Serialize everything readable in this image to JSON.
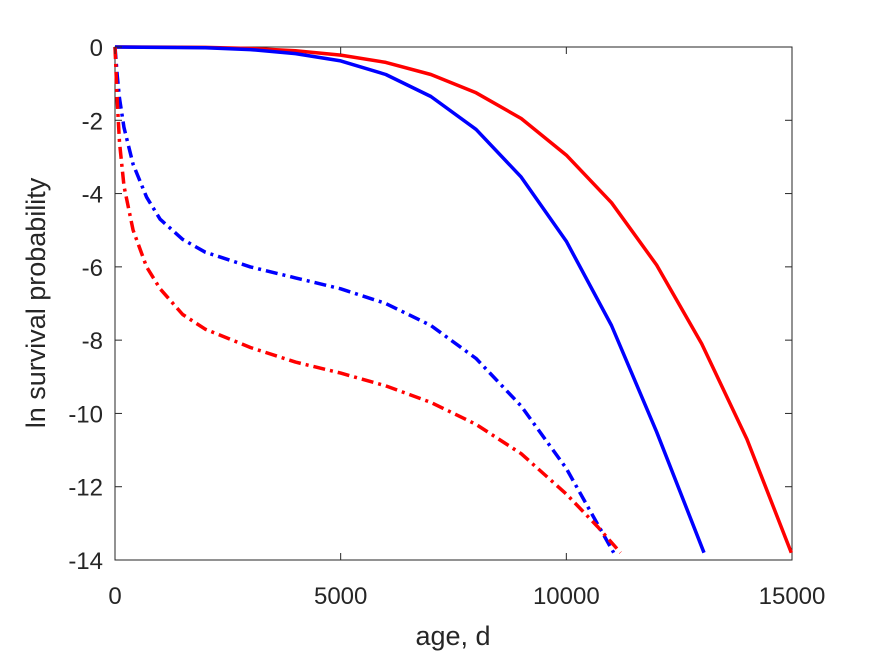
{
  "chart_data": {
    "type": "line",
    "title": "",
    "xlabel": "age, d",
    "ylabel": "ln survival probability",
    "xlim": [
      0,
      15000
    ],
    "ylim": [
      -14,
      0
    ],
    "xticks": [
      0,
      5000,
      10000,
      15000
    ],
    "yticks": [
      0,
      -2,
      -4,
      -6,
      -8,
      -10,
      -12,
      -14
    ],
    "xtick_labels": [
      "0",
      "5000",
      "10000",
      "15000"
    ],
    "ytick_labels": [
      "0",
      "-2",
      "-4",
      "-6",
      "-8",
      "-10",
      "-12",
      "-14"
    ],
    "grid": false,
    "legend": "none",
    "series": [
      {
        "color": "#ff0000",
        "style": "solid",
        "points": [
          [
            0,
            0
          ],
          [
            2000,
            -0.01
          ],
          [
            3000,
            -0.04
          ],
          [
            4000,
            -0.1
          ],
          [
            5000,
            -0.22
          ],
          [
            6000,
            -0.42
          ],
          [
            7000,
            -0.75
          ],
          [
            8000,
            -1.25
          ],
          [
            9000,
            -1.95
          ],
          [
            10000,
            -2.95
          ],
          [
            11000,
            -4.25
          ],
          [
            12000,
            -5.95
          ],
          [
            13000,
            -8.1
          ],
          [
            14000,
            -10.7
          ],
          [
            14985,
            -13.8
          ]
        ]
      },
      {
        "color": "#0000ff",
        "style": "solid",
        "points": [
          [
            0,
            0
          ],
          [
            2000,
            -0.02
          ],
          [
            3000,
            -0.07
          ],
          [
            4000,
            -0.18
          ],
          [
            5000,
            -0.38
          ],
          [
            6000,
            -0.75
          ],
          [
            7000,
            -1.35
          ],
          [
            8000,
            -2.25
          ],
          [
            9000,
            -3.55
          ],
          [
            10000,
            -5.3
          ],
          [
            11000,
            -7.6
          ],
          [
            12000,
            -10.5
          ],
          [
            13050,
            -13.8
          ]
        ]
      },
      {
        "color": "#0000ff",
        "style": "dashdot",
        "points": [
          [
            0,
            0
          ],
          [
            50,
            -0.8
          ],
          [
            100,
            -1.4
          ],
          [
            200,
            -2.2
          ],
          [
            400,
            -3.2
          ],
          [
            700,
            -4.1
          ],
          [
            1000,
            -4.7
          ],
          [
            1500,
            -5.25
          ],
          [
            2000,
            -5.6
          ],
          [
            3000,
            -6.0
          ],
          [
            4000,
            -6.3
          ],
          [
            5000,
            -6.6
          ],
          [
            6000,
            -7.0
          ],
          [
            7000,
            -7.6
          ],
          [
            8000,
            -8.5
          ],
          [
            9000,
            -9.8
          ],
          [
            10000,
            -11.5
          ],
          [
            10500,
            -12.6
          ],
          [
            11050,
            -13.8
          ]
        ]
      },
      {
        "color": "#ff0000",
        "style": "dashdot",
        "points": [
          [
            0,
            0
          ],
          [
            50,
            -1.5
          ],
          [
            100,
            -2.6
          ],
          [
            200,
            -3.8
          ],
          [
            400,
            -5.0
          ],
          [
            700,
            -6.0
          ],
          [
            1000,
            -6.6
          ],
          [
            1500,
            -7.3
          ],
          [
            2000,
            -7.7
          ],
          [
            3000,
            -8.2
          ],
          [
            4000,
            -8.6
          ],
          [
            5000,
            -8.9
          ],
          [
            6000,
            -9.25
          ],
          [
            7000,
            -9.7
          ],
          [
            8000,
            -10.3
          ],
          [
            9000,
            -11.1
          ],
          [
            10000,
            -12.2
          ],
          [
            10700,
            -13.1
          ],
          [
            11200,
            -13.8
          ]
        ]
      }
    ]
  }
}
